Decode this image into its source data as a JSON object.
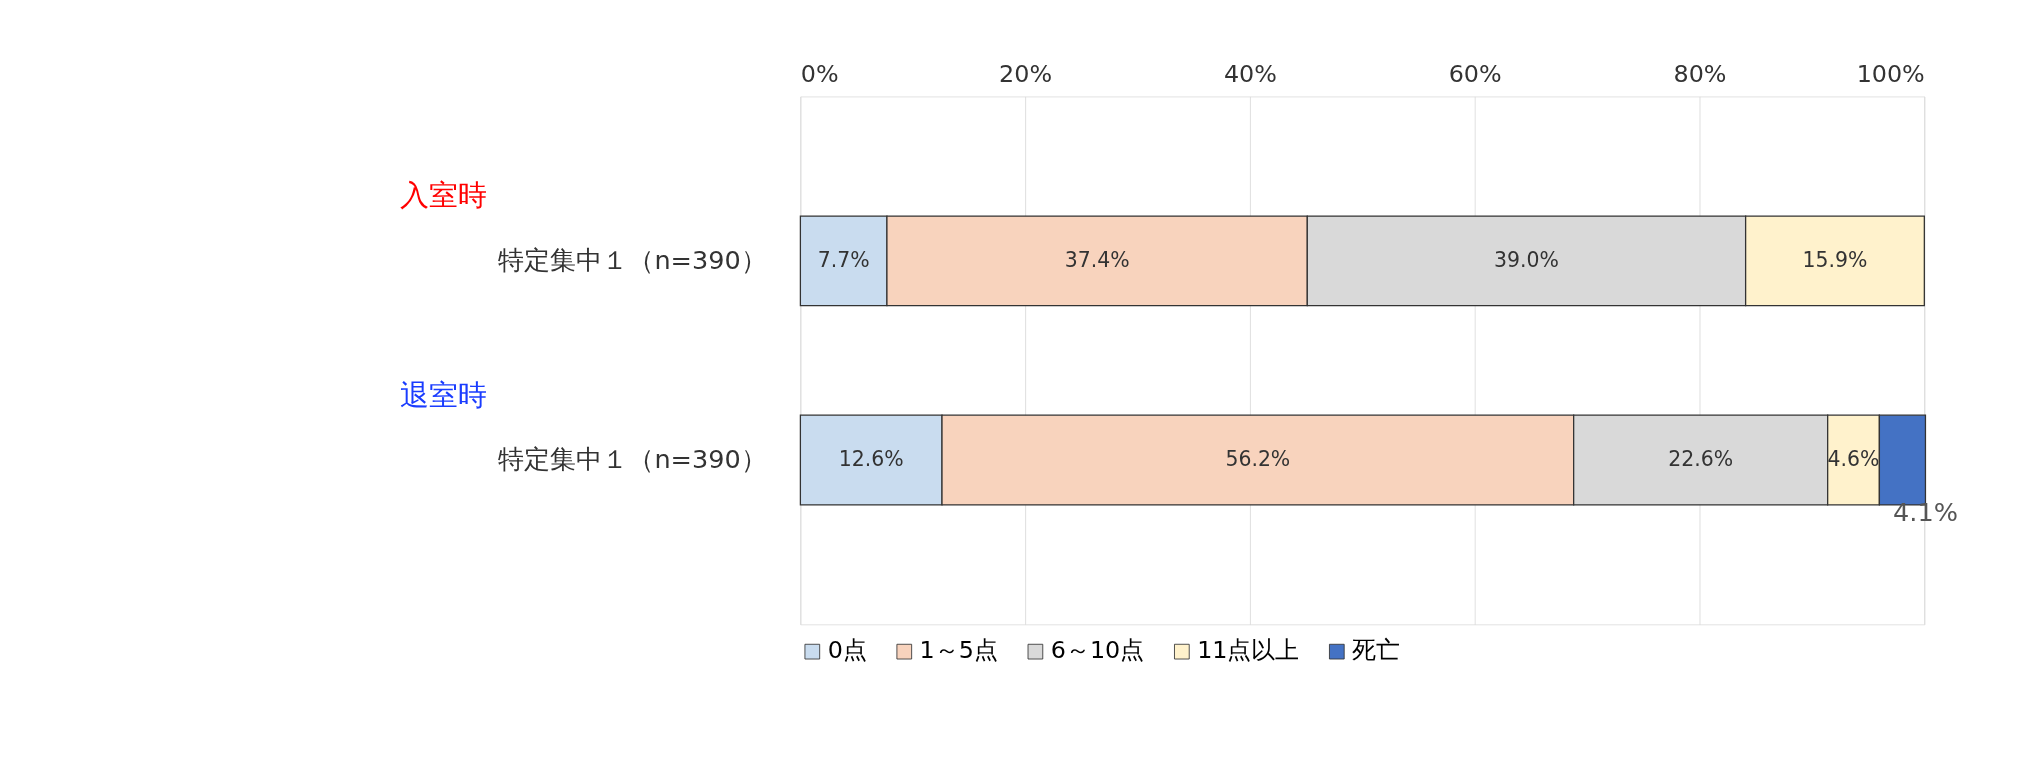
{
  "chart_data": {
    "type": "bar",
    "orientation": "horizontal",
    "stacked": true,
    "categories": [
      "特定集中１（n=390）",
      "特定集中１（n=390）"
    ],
    "series": [
      {
        "name": "0点",
        "color": "#c9dcef",
        "values": [
          7.7,
          12.6
        ],
        "value_labels": [
          "7.7%",
          "12.6%"
        ]
      },
      {
        "name": "1～5点",
        "color": "#f8d3bd",
        "values": [
          37.4,
          56.2
        ],
        "value_labels": [
          "37.4%",
          "56.2%"
        ]
      },
      {
        "name": "6～10点",
        "color": "#d9d9d9",
        "values": [
          39.0,
          22.6
        ],
        "value_labels": [
          "39.0%",
          "22.6%"
        ]
      },
      {
        "name": "11点以上",
        "color": "#fff2cc",
        "values": [
          15.9,
          4.6
        ],
        "value_labels": [
          "15.9%",
          "4.6%"
        ]
      },
      {
        "name": "死亡",
        "color": "#4472c4",
        "values": [
          null,
          4.1
        ],
        "value_labels": [
          null,
          "4.1%"
        ]
      }
    ],
    "xlim": [
      0,
      100
    ],
    "xticks": [
      {
        "value": 0,
        "label": "0%"
      },
      {
        "value": 20,
        "label": "20%"
      },
      {
        "value": 40,
        "label": "40%"
      },
      {
        "value": 60,
        "label": "60%"
      },
      {
        "value": 80,
        "label": "80%"
      },
      {
        "value": 100,
        "label": "100%"
      }
    ],
    "grid": "x",
    "legend": "bottom",
    "annotations": [
      "入室時",
      "退室時"
    ]
  }
}
